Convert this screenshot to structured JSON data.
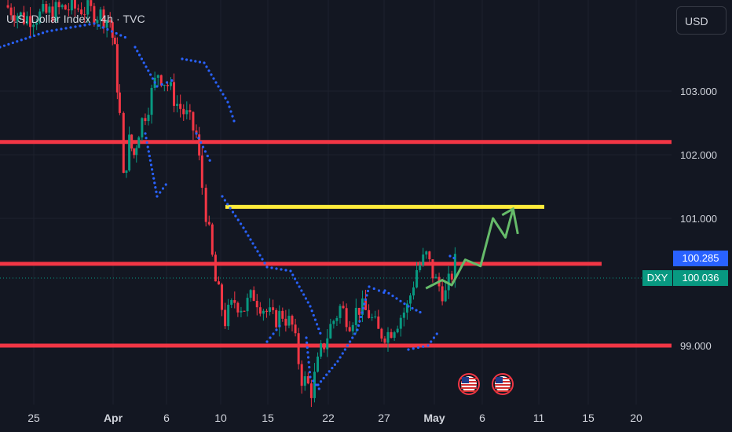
{
  "header": {
    "title": "U.S. Dollar Index · 4h · TVC",
    "currency_button": "USD"
  },
  "price_tags": {
    "symbol": "DXY",
    "last_price": "100.036",
    "line_price": "100.285"
  },
  "colors": {
    "background": "#131722",
    "up": "#089981",
    "down": "#f23645",
    "psar": "#2962ff",
    "level_lines": "#f23645",
    "target_line": "#ffeb3b",
    "projection_arrow": "#66bb6a",
    "axis_text": "#d1d4dc"
  },
  "event_icons": [
    "us-flag-icon",
    "us-flag-icon"
  ],
  "chart_data": {
    "type": "line",
    "title": "U.S. Dollar Index · 4h · TVC",
    "x_axis": {
      "ticks": [
        "25",
        "Apr",
        "6",
        "10",
        "15",
        "22",
        "27",
        "May",
        "6",
        "11",
        "15",
        "20"
      ],
      "range": [
        "Mar 25",
        "May 20"
      ]
    },
    "y_axis": {
      "ticks": [
        "103.000",
        "102.000",
        "101.000",
        "99.000"
      ],
      "range": [
        98.2,
        104.4
      ]
    },
    "grid": true,
    "series": [
      {
        "values": [
          [
            0,
            104.35
          ],
          [
            2,
            104.15
          ],
          [
            4,
            104.2
          ],
          [
            6,
            104.3
          ],
          [
            8,
            104.3
          ],
          [
            10,
            104.2
          ],
          [
            11,
            104.1
          ],
          [
            11.5,
            103.6
          ],
          [
            12,
            102.6
          ],
          [
            12.4,
            101.6
          ],
          [
            13,
            102.2
          ],
          [
            13.5,
            102.0
          ],
          [
            14,
            102.4
          ],
          [
            15,
            102.8
          ],
          [
            16,
            103.3
          ],
          [
            17,
            103.1
          ],
          [
            18,
            102.8
          ],
          [
            19,
            102.6
          ],
          [
            20,
            102.3
          ],
          [
            20.6,
            101.5
          ],
          [
            21,
            101.1
          ],
          [
            22,
            100.0
          ],
          [
            23,
            99.4
          ],
          [
            24,
            99.7
          ],
          [
            25,
            99.6
          ],
          [
            26,
            99.8
          ],
          [
            27,
            99.6
          ],
          [
            28,
            99.4
          ],
          [
            29,
            99.5
          ],
          [
            30,
            99.3
          ],
          [
            31,
            98.5
          ],
          [
            32,
            98.3
          ],
          [
            33,
            98.9
          ],
          [
            34,
            99.3
          ],
          [
            35,
            99.6
          ],
          [
            36,
            99.4
          ],
          [
            37,
            99.6
          ],
          [
            38,
            99.5
          ],
          [
            39,
            99.2
          ],
          [
            40,
            99.2
          ],
          [
            41,
            99.4
          ],
          [
            42,
            99.6
          ],
          [
            43,
            100.2
          ],
          [
            44,
            100.4
          ],
          [
            45,
            100.0
          ],
          [
            46,
            99.8
          ],
          [
            47,
            100.3
          ]
        ]
      }
    ],
    "levels": [
      102.2,
      100.285,
      99.0
    ],
    "target_level": 101.18,
    "projection": {
      "x": [
        43.3,
        45,
        46,
        47.4,
        49,
        50.3,
        51.6,
        52.4
      ],
      "y": [
        99.9,
        100.03,
        99.95,
        100.35,
        100.25,
        101.0,
        100.7,
        101.15
      ]
    }
  }
}
